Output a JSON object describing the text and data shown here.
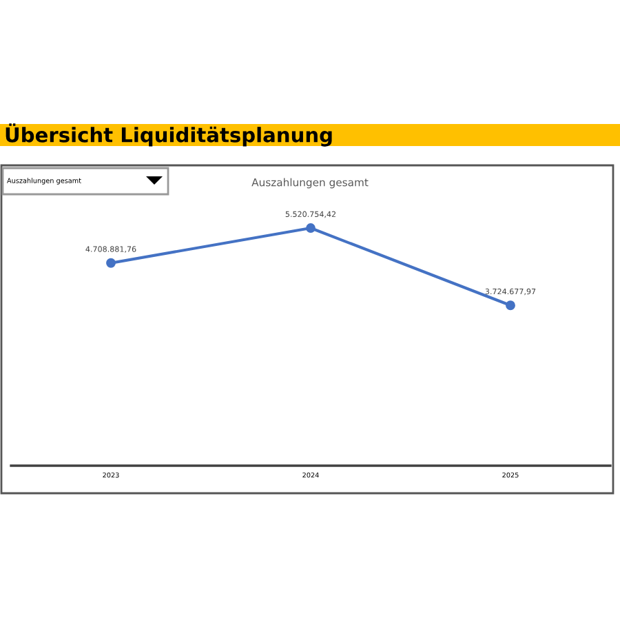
{
  "chart_data": {
    "type": "line",
    "title": "Übersicht Liquiditätsplanung",
    "subtitle": "Auszahlungen gesamt",
    "annotations": [
      "Auszahlungen gesamt"
    ],
    "categories": [
      "2023",
      "2024",
      "2025"
    ],
    "series": [
      {
        "color": "#4472c4",
        "values": [
          4708881.76,
          5520754.42,
          3724677.97
        ],
        "value_labels": [
          "4.708.881,76",
          "5.520.754,42",
          "3.724.677,97"
        ]
      }
    ],
    "tick_labels": "x",
    "marker": "circle",
    "line_style": "solid",
    "grid": false,
    "legend": false
  }
}
